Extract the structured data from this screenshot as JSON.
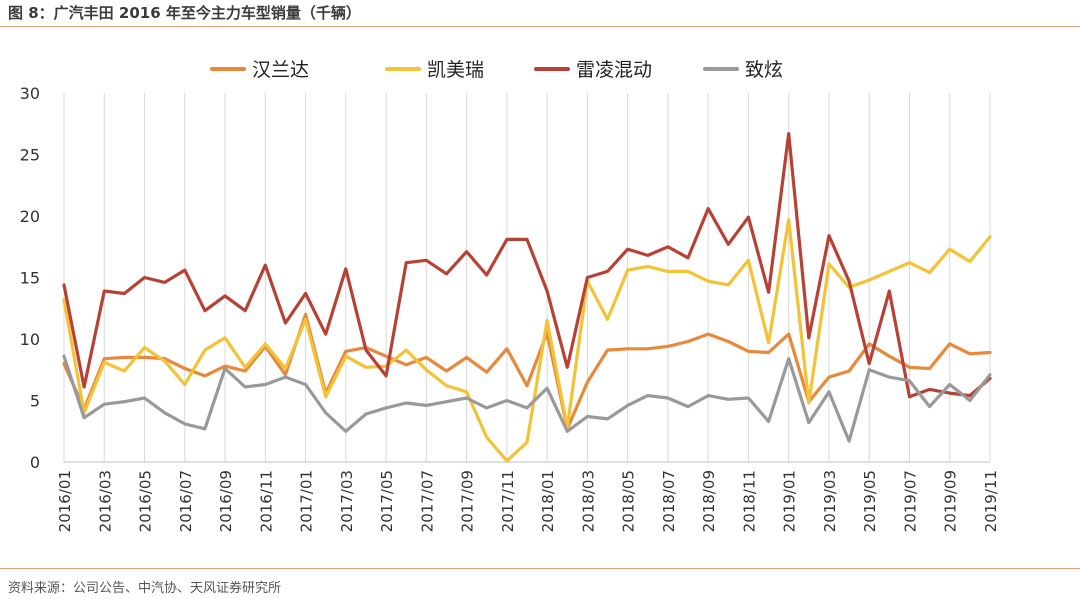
{
  "header": {
    "title": "图 8：广汽丰田 2016 年至今主力车型销量（千辆）"
  },
  "footer": {
    "source": "资料来源：公司公告、中汽协、天风证券研究所"
  },
  "chart_data": {
    "type": "line",
    "title": "",
    "xlabel": "",
    "ylabel": "",
    "ylim": [
      0,
      30
    ],
    "yticks": [
      0,
      5,
      10,
      15,
      20,
      25,
      30
    ],
    "grid": "vertical",
    "legend_position": "top-center",
    "x": [
      "2016/01",
      "2016/02",
      "2016/03",
      "2016/04",
      "2016/05",
      "2016/06",
      "2016/07",
      "2016/08",
      "2016/09",
      "2016/10",
      "2016/11",
      "2016/12",
      "2017/01",
      "2017/02",
      "2017/03",
      "2017/04",
      "2017/05",
      "2017/06",
      "2017/07",
      "2017/08",
      "2017/09",
      "2017/10",
      "2017/11",
      "2017/12",
      "2018/01",
      "2018/02",
      "2018/03",
      "2018/04",
      "2018/05",
      "2018/06",
      "2018/07",
      "2018/08",
      "2018/09",
      "2018/10",
      "2018/11",
      "2018/12",
      "2019/01",
      "2019/02",
      "2019/03",
      "2019/04",
      "2019/05",
      "2019/06",
      "2019/07",
      "2019/08",
      "2019/09",
      "2019/10",
      "2019/11"
    ],
    "x_tick_labels": [
      "2016/01",
      "2016/03",
      "2016/05",
      "2016/07",
      "2016/09",
      "2016/11",
      "2017/01",
      "2017/03",
      "2017/05",
      "2017/07",
      "2017/09",
      "2017/11",
      "2018/01",
      "2018/03",
      "2018/05",
      "2018/07",
      "2018/09",
      "2018/11",
      "2019/01",
      "2019/03",
      "2019/05",
      "2019/07",
      "2019/09",
      "2019/11"
    ],
    "series": [
      {
        "name": "汉兰达",
        "color": "#e8883a",
        "values": [
          8.0,
          4.3,
          8.4,
          8.5,
          8.5,
          8.4,
          7.6,
          7.0,
          7.8,
          7.4,
          9.4,
          7.1,
          12.0,
          5.6,
          9.0,
          9.3,
          8.6,
          7.9,
          8.5,
          7.4,
          8.5,
          7.3,
          9.2,
          6.2,
          10.5,
          2.7,
          6.5,
          9.1,
          9.2,
          9.2,
          9.4,
          9.8,
          10.4,
          9.8,
          9.0,
          8.9,
          10.4,
          4.9,
          6.9,
          7.4,
          9.6,
          8.6,
          7.7,
          7.6,
          9.6,
          8.8,
          8.9
        ]
      },
      {
        "name": "凯美瑞",
        "color": "#f3c237",
        "values": [
          13.2,
          4.0,
          8.1,
          7.4,
          9.3,
          8.2,
          6.3,
          9.1,
          10.1,
          7.7,
          9.6,
          7.6,
          11.6,
          5.3,
          8.6,
          7.7,
          7.8,
          9.1,
          7.5,
          6.2,
          5.7,
          2.0,
          0.1,
          1.6,
          11.5,
          2.8,
          14.7,
          11.6,
          15.6,
          15.9,
          15.5,
          15.5,
          14.7,
          14.4,
          16.4,
          9.7,
          19.7,
          4.8,
          16.1,
          14.2,
          14.8,
          15.5,
          16.2,
          15.4,
          17.3,
          16.3,
          18.3
        ]
      },
      {
        "name": "雷凌混动",
        "color": "#b84136",
        "values": [
          14.4,
          6.1,
          13.9,
          13.7,
          15.0,
          14.6,
          15.6,
          12.3,
          13.5,
          12.3,
          16.0,
          11.3,
          13.7,
          10.4,
          15.7,
          9.1,
          7.0,
          16.2,
          16.4,
          15.3,
          17.1,
          15.2,
          18.1,
          18.1,
          13.9,
          7.7,
          15.0,
          15.5,
          17.3,
          16.8,
          17.5,
          16.6,
          20.6,
          17.7,
          19.9,
          13.8,
          26.7,
          10.1,
          18.4,
          14.7,
          8.0,
          13.9,
          5.3,
          5.9,
          5.6,
          5.4,
          6.8
        ]
      },
      {
        "name": "致炫",
        "color": "#999999",
        "values": [
          8.6,
          3.6,
          4.7,
          4.9,
          5.2,
          4.0,
          3.1,
          2.7,
          7.6,
          6.1,
          6.3,
          6.9,
          6.3,
          4.0,
          2.5,
          3.9,
          4.4,
          4.8,
          4.6,
          4.9,
          5.2,
          4.4,
          5.0,
          4.4,
          6.0,
          2.5,
          3.7,
          3.5,
          4.6,
          5.4,
          5.2,
          4.5,
          5.4,
          5.1,
          5.2,
          3.3,
          8.4,
          3.2,
          5.7,
          1.7,
          7.5,
          6.9,
          6.6,
          4.5,
          6.3,
          5.0,
          7.1
        ]
      }
    ]
  }
}
